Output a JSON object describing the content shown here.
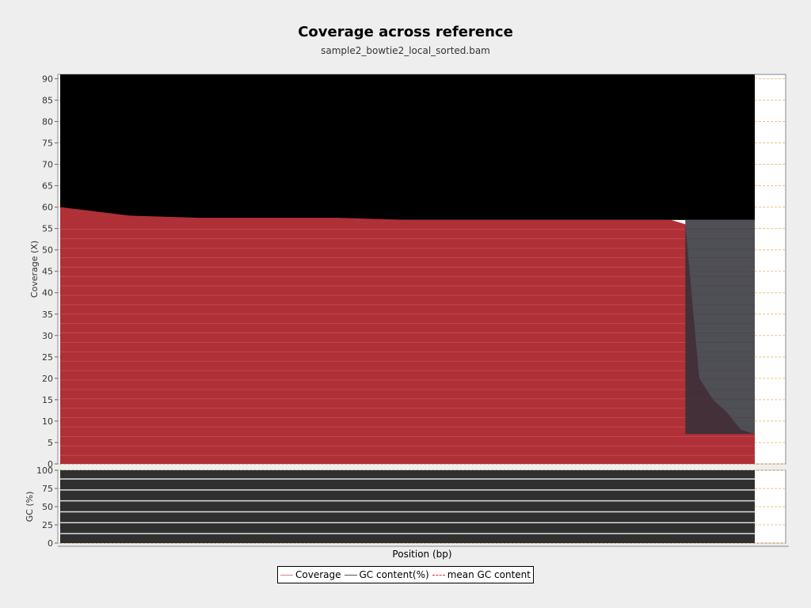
{
  "header": {
    "title": "Coverage across reference",
    "subtitle": "sample2_bowtie2_local_sorted.bam"
  },
  "colors": {
    "background": "#eeeeee",
    "plot_background": "#ffffff",
    "coverage_fill": "#b03038",
    "coverage_top": "#000000",
    "gc_fill": "#303030",
    "grid": "#f0c080"
  },
  "legend": {
    "items": [
      {
        "label": "Coverage",
        "style": "solid-red"
      },
      {
        "label": "GC content(%)",
        "style": "solid-grey"
      },
      {
        "label": "mean GC content",
        "style": "dashed-red"
      }
    ]
  },
  "chart_data": [
    {
      "type": "area",
      "panel": "coverage",
      "xlabel": "Position (bp)",
      "ylabel": "Coverage (X)",
      "ylim": [
        0,
        91
      ],
      "yticks": [
        0,
        5,
        10,
        15,
        20,
        25,
        30,
        35,
        40,
        45,
        50,
        55,
        60,
        65,
        70,
        75,
        80,
        85,
        90
      ],
      "x_tick_labels": [],
      "grid": true,
      "series": [
        {
          "name": "Coverage",
          "note_profile": "mean coverage approx 57-60X across the reference, dropping near the 3' end",
          "x_fraction": [
            0.0,
            0.05,
            0.1,
            0.2,
            0.3,
            0.4,
            0.5,
            0.6,
            0.7,
            0.8,
            0.88,
            0.9,
            0.92,
            0.94,
            0.96,
            0.98,
            1.0
          ],
          "values": [
            60,
            59,
            58,
            57.5,
            57.5,
            57.5,
            57,
            57,
            57,
            57,
            57,
            56,
            20,
            15,
            12,
            8,
            7
          ]
        }
      ]
    },
    {
      "type": "area",
      "panel": "gc",
      "ylabel": "GC (%)",
      "ylim": [
        0,
        100
      ],
      "yticks": [
        0,
        25,
        50,
        75,
        100
      ],
      "grid": true,
      "series": [
        {
          "name": "GC content(%)",
          "x_fraction": [
            0.0,
            0.2,
            0.4,
            0.6,
            0.8,
            1.0
          ],
          "values": [
            100,
            100,
            100,
            100,
            100,
            100
          ]
        }
      ]
    }
  ]
}
